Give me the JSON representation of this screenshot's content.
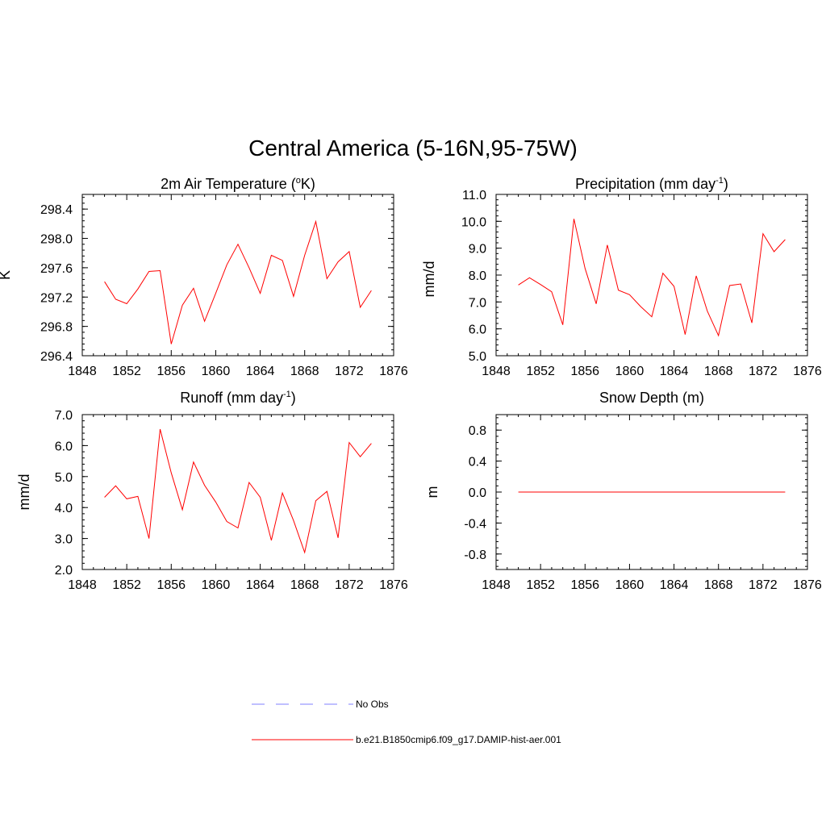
{
  "figure": {
    "title": "Central America (5-16N,95-75W)"
  },
  "legend": {
    "items": [
      {
        "label": "No Obs",
        "color": "#9999ff",
        "style": "dashed"
      },
      {
        "label": "b.e21.B1850cmip6.f09_g17.DAMIP-hist-aer.001",
        "color": "#ff0000",
        "style": "solid"
      }
    ]
  },
  "colors": {
    "series": "#ff0000",
    "no_obs": "#9999ff",
    "axis": "#000000"
  },
  "chart_data": [
    {
      "type": "line",
      "title_main": "2m Air Temperature (",
      "title_sup": "o",
      "title_tail": "K)",
      "ylabel": "K",
      "xlim": [
        1848,
        1876
      ],
      "ylim": [
        296.4,
        298.6
      ],
      "xticks": [
        "1848",
        "1852",
        "1856",
        "1860",
        "1864",
        "1868",
        "1872",
        "1876"
      ],
      "yticks": [
        "296.4",
        "296.8",
        "297.2",
        "297.6",
        "298.0",
        "298.4"
      ],
      "series": [
        {
          "x": [
            1850,
            1851,
            1852,
            1853,
            1854,
            1855,
            1856,
            1857,
            1858,
            1859,
            1860,
            1861,
            1862,
            1863,
            1864,
            1865,
            1866,
            1867,
            1868,
            1869,
            1870,
            1871,
            1872,
            1873,
            1874
          ],
          "values": [
            297.41,
            297.17,
            297.11,
            297.31,
            297.55,
            297.56,
            296.56,
            297.09,
            297.32,
            296.87,
            297.25,
            297.64,
            297.92,
            297.6,
            297.25,
            297.77,
            297.7,
            297.21,
            297.77,
            298.23,
            297.45,
            297.68,
            297.82,
            297.06,
            297.29
          ]
        }
      ]
    },
    {
      "type": "line",
      "title_main": "Precipitation (mm day",
      "title_sup": "-1",
      "title_tail": ")",
      "ylabel": "mm/d",
      "xlim": [
        1848,
        1876
      ],
      "ylim": [
        5.0,
        11.0
      ],
      "xticks": [
        "1848",
        "1852",
        "1856",
        "1860",
        "1864",
        "1868",
        "1872",
        "1876"
      ],
      "yticks": [
        "5.0",
        "6.0",
        "7.0",
        "8.0",
        "9.0",
        "10.0",
        "11.0"
      ],
      "series": [
        {
          "x": [
            1850,
            1851,
            1852,
            1853,
            1854,
            1855,
            1856,
            1857,
            1858,
            1859,
            1860,
            1861,
            1862,
            1863,
            1864,
            1865,
            1866,
            1867,
            1868,
            1869,
            1870,
            1871,
            1872,
            1873,
            1874
          ],
          "values": [
            7.63,
            7.9,
            7.65,
            7.38,
            6.15,
            10.09,
            8.25,
            6.93,
            9.12,
            7.44,
            7.27,
            6.83,
            6.45,
            8.07,
            7.58,
            5.79,
            7.97,
            6.66,
            5.75,
            7.61,
            7.67,
            6.22,
            9.54,
            8.87,
            9.32
          ]
        }
      ]
    },
    {
      "type": "line",
      "title_main": "Runoff (mm day",
      "title_sup": "-1",
      "title_tail": ")",
      "ylabel": "mm/d",
      "xlim": [
        1848,
        1876
      ],
      "ylim": [
        2.0,
        7.0
      ],
      "xticks": [
        "1848",
        "1852",
        "1856",
        "1860",
        "1864",
        "1868",
        "1872",
        "1876"
      ],
      "yticks": [
        "2.0",
        "3.0",
        "4.0",
        "5.0",
        "6.0",
        "7.0"
      ],
      "series": [
        {
          "x": [
            1850,
            1851,
            1852,
            1853,
            1854,
            1855,
            1856,
            1857,
            1858,
            1859,
            1860,
            1861,
            1862,
            1863,
            1864,
            1865,
            1866,
            1867,
            1868,
            1869,
            1870,
            1871,
            1872,
            1873,
            1874
          ],
          "values": [
            4.33,
            4.7,
            4.28,
            4.36,
            3.0,
            6.53,
            5.12,
            3.93,
            5.47,
            4.72,
            4.18,
            3.55,
            3.34,
            4.81,
            4.33,
            2.94,
            4.47,
            3.58,
            2.55,
            4.22,
            4.52,
            3.02,
            6.1,
            5.64,
            6.07
          ]
        }
      ]
    },
    {
      "type": "line",
      "title_main": "Snow Depth (m)",
      "title_sup": "",
      "title_tail": "",
      "ylabel": "m",
      "xlim": [
        1848,
        1876
      ],
      "ylim": [
        -1.0,
        1.0
      ],
      "xticks": [
        "1848",
        "1852",
        "1856",
        "1860",
        "1864",
        "1868",
        "1872",
        "1876"
      ],
      "yticks": [
        "-0.8",
        "-0.4",
        "0.0",
        "0.4",
        "0.8"
      ],
      "series": [
        {
          "x": [
            1850,
            1851,
            1852,
            1853,
            1854,
            1855,
            1856,
            1857,
            1858,
            1859,
            1860,
            1861,
            1862,
            1863,
            1864,
            1865,
            1866,
            1867,
            1868,
            1869,
            1870,
            1871,
            1872,
            1873,
            1874
          ],
          "values": [
            0,
            0,
            0,
            0,
            0,
            0,
            0,
            0,
            0,
            0,
            0,
            0,
            0,
            0,
            0,
            0,
            0,
            0,
            0,
            0,
            0,
            0,
            0,
            0,
            0
          ]
        }
      ]
    }
  ]
}
